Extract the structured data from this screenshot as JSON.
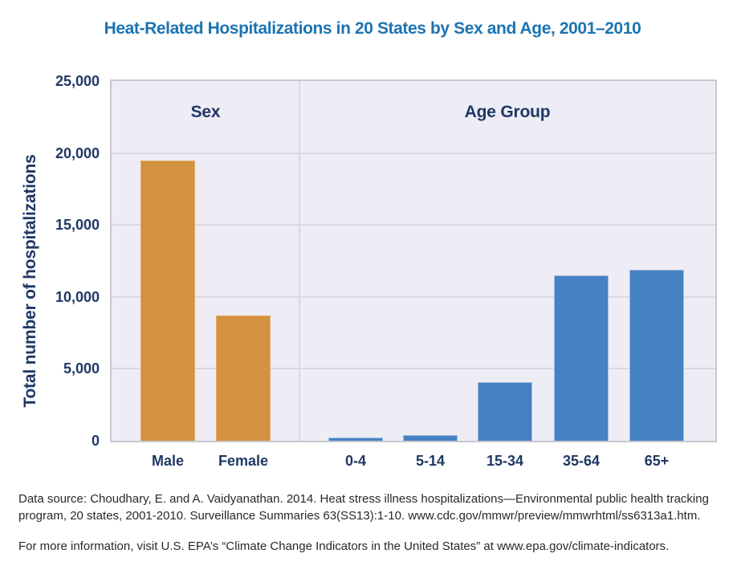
{
  "title": "Heat-Related Hospitalizations in 20 States by Sex and Age, 2001–2010",
  "y_axis": {
    "label": "Total number of hospitalizations",
    "ticks": [
      {
        "label": "25,000",
        "value": 25000
      },
      {
        "label": "20,000",
        "value": 20000
      },
      {
        "label": "15,000",
        "value": 15000
      },
      {
        "label": "10,000",
        "value": 10000
      },
      {
        "label": "5,000",
        "value": 5000
      },
      {
        "label": "0",
        "value": 0
      }
    ]
  },
  "chart_data": {
    "type": "bar",
    "title": "Heat-Related Hospitalizations in 20 States by Sex and Age, 2001–2010",
    "xlabel": "",
    "ylabel": "Total number of hospitalizations",
    "ylim": [
      0,
      25000
    ],
    "ytick_interval": 5000,
    "grid": true,
    "groups": [
      {
        "label": "Sex",
        "color": "#D3923F",
        "edge_color": "#E0AC6A",
        "categories": [
          "Male",
          "Female"
        ],
        "values": [
          19500,
          8700
        ]
      },
      {
        "label": "Age Group",
        "color": "#4681C3",
        "edge_color": "#9DBEE1",
        "categories": [
          "0-4",
          "5-14",
          "15-34",
          "35-64",
          "65+"
        ],
        "values": [
          250,
          400,
          4100,
          11500,
          11900
        ]
      }
    ]
  },
  "footer": {
    "source": "Data source: Choudhary, E. and A. Vaidyanathan. 2014. Heat stress illness hospitalizations—Environmental public health tracking program, 20 states, 2001-2010. Surveillance Summaries 63(SS13):1-10. www.cdc.gov/mmwr/preview/mmwrhtml/ss6313a1.htm.",
    "more_info": "For more information, visit U.S. EPA’s “Climate Change Indicators in the United States” at www.epa.gov/climate-indicators."
  },
  "colors": {
    "title_blue": "#1C74B2",
    "navy": "#1F3864",
    "plot_bg": "#EEECF4",
    "plot_border": "#C9C7CF",
    "grid": "#DAD8E0",
    "footer_text": "#2B2728"
  }
}
